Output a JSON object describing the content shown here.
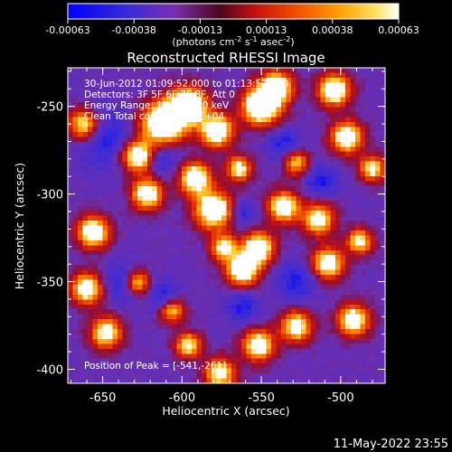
{
  "colorbar": {
    "ticks": [
      "-0.00063",
      "-0.00038",
      "-0.00013",
      "0.00013",
      "0.00038",
      "0.00063"
    ],
    "units": "(photons cm",
    "units_exp1": "-2",
    "units_s": " s",
    "units_exp2": "-1",
    "units_asec": " asec",
    "units_exp3": "-2",
    "units_close": ")"
  },
  "title": "Reconstructed RHESSI Image",
  "info": {
    "line1": "30-Jun-2012 01:09:52.000 to 01:13:52.000",
    "line2": "Detectors: 3F 5F 6F 7F 8F, Att 0",
    "line3": "Energy Range: 12.0 - 25.0 keV",
    "line4": "Clean    Total counts: 1.37E+04"
  },
  "peak_text": "Position of Peak = [-541,-261]",
  "xaxis": {
    "label": "Heliocentric X (arcsec)",
    "ticks": [
      "-650",
      "-600",
      "-550",
      "-500"
    ],
    "tick_values": [
      -650,
      -600,
      -550,
      -500
    ],
    "range": [
      -672,
      -472
    ]
  },
  "yaxis": {
    "label": "Heliocentric Y (arcsec)",
    "ticks": [
      "-250",
      "-300",
      "-350",
      "-400"
    ],
    "tick_values": [
      -250,
      -300,
      -350,
      -400
    ],
    "range": [
      -408,
      -228
    ]
  },
  "timestamp": "11-May-2022 23:55",
  "colors": {
    "background": "#000000",
    "foreground": "#ffffff",
    "colormap": [
      "#0000ff",
      "#3a2ad8",
      "#6a2fb0",
      "#8a1040",
      "#c01010",
      "#e84000",
      "#ff8a00",
      "#ffd040",
      "#ffffff"
    ]
  }
}
